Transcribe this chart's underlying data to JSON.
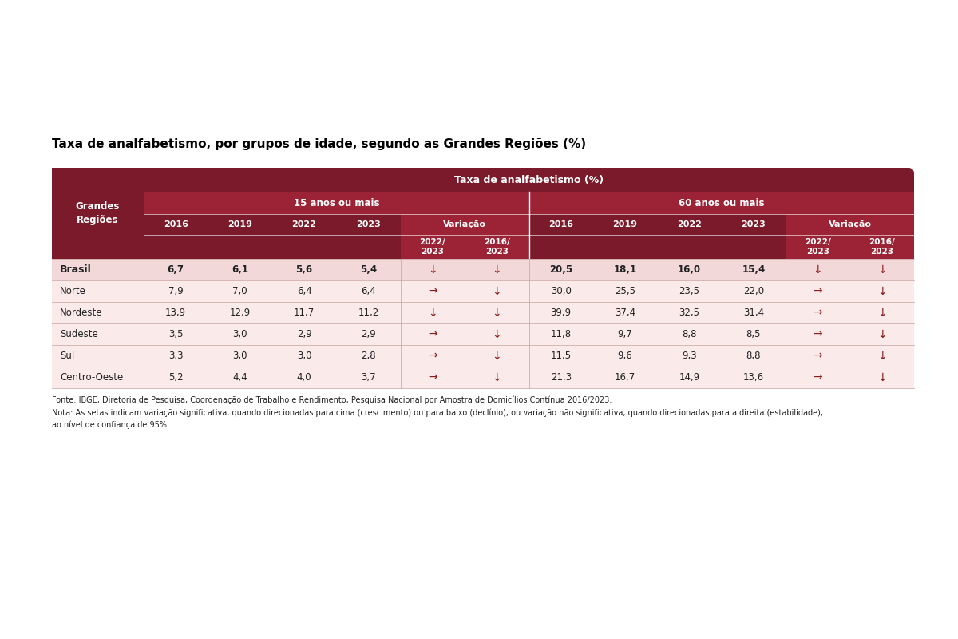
{
  "title": "Taxa de analfabetismo, por grupos de idade, segundo as Grandes Regiões (%)",
  "header_main": "Taxa de analfabetismo (%)",
  "header_15": "15 anos ou mais",
  "header_60": "60 anos ou mais",
  "header_variacao": "Variação",
  "col_years": [
    "2016",
    "2019",
    "2022",
    "2023"
  ],
  "col_var": [
    "2022/\n2023",
    "2016/\n2023"
  ],
  "col_header_region": "Grandes\nRegiões",
  "rows": [
    {
      "region": "Brasil",
      "bold": true,
      "brasil_row": true,
      "v15": [
        "6,7",
        "6,1",
        "5,6",
        "5,4",
        "↓",
        "↓"
      ],
      "v60": [
        "20,5",
        "18,1",
        "16,0",
        "15,4",
        "↓",
        "↓"
      ]
    },
    {
      "region": "Norte",
      "bold": false,
      "brasil_row": false,
      "v15": [
        "7,9",
        "7,0",
        "6,4",
        "6,4",
        "→",
        "↓"
      ],
      "v60": [
        "30,0",
        "25,5",
        "23,5",
        "22,0",
        "→",
        "↓"
      ]
    },
    {
      "region": "Nordeste",
      "bold": false,
      "brasil_row": false,
      "v15": [
        "13,9",
        "12,9",
        "11,7",
        "11,2",
        "↓",
        "↓"
      ],
      "v60": [
        "39,9",
        "37,4",
        "32,5",
        "31,4",
        "→",
        "↓"
      ]
    },
    {
      "region": "Sudeste",
      "bold": false,
      "brasil_row": false,
      "v15": [
        "3,5",
        "3,0",
        "2,9",
        "2,9",
        "→",
        "↓"
      ],
      "v60": [
        "11,8",
        "9,7",
        "8,8",
        "8,5",
        "→",
        "↓"
      ]
    },
    {
      "region": "Sul",
      "bold": false,
      "brasil_row": false,
      "v15": [
        "3,3",
        "3,0",
        "3,0",
        "2,8",
        "→",
        "↓"
      ],
      "v60": [
        "11,5",
        "9,6",
        "9,3",
        "8,8",
        "→",
        "↓"
      ]
    },
    {
      "region": "Centro-Oeste",
      "bold": false,
      "brasil_row": false,
      "v15": [
        "5,2",
        "4,4",
        "4,0",
        "3,7",
        "→",
        "↓"
      ],
      "v60": [
        "21,3",
        "16,7",
        "14,9",
        "13,6",
        "→",
        "↓"
      ]
    }
  ],
  "fonte": "Fonte: IBGE, Diretoria de Pesquisa, Coordenação de Trabalho e Rendimento, Pesquisa Nacional por Amostra de Domicílios Contínua 2016/2023.",
  "nota": "Nota: As setas indicam variação significativa, quando direcionadas para cima (crescimento) ou para baixo (declínio), ou variação não significativa, quando direcionadas para a direita (estabilidade),\nao nível de confiança de 95%.",
  "dark_red": "#7B1A2A",
  "mid_red": "#9B2335",
  "light_pink": "#faeaea",
  "brasil_pink": "#f2d8d8",
  "white": "#ffffff",
  "text_dark": "#222222",
  "text_red": "#8B1A1A",
  "sep_color": "#c8a0a0"
}
